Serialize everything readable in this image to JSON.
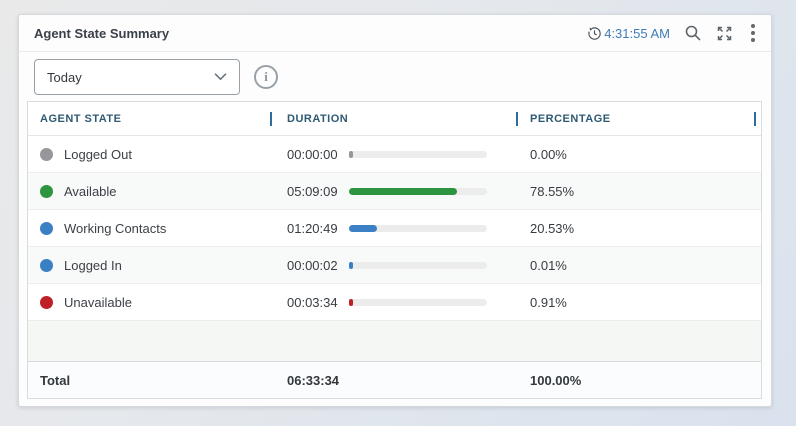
{
  "widget": {
    "title": "Agent State Summary",
    "last_refresh_time": "4:31:55 AM",
    "filter": {
      "value": "Today"
    },
    "icons": [
      "clock-history-icon",
      "zoom-icon",
      "expand-icon",
      "kebab-menu-icon",
      "chevron-down-icon",
      "info-icon"
    ]
  },
  "table": {
    "columns": [
      "AGENT STATE",
      "DURATION",
      "PERCENTAGE"
    ],
    "rows": [
      {
        "state": "Logged Out",
        "color": "#95979a",
        "duration": "00:00:00",
        "percentage": "0.00%",
        "percent_value": 0.0
      },
      {
        "state": "Available",
        "color": "#2d9440",
        "duration": "05:09:09",
        "percentage": "78.55%",
        "percent_value": 78.55
      },
      {
        "state": "Working Contacts",
        "color": "#3b7fc4",
        "duration": "01:20:49",
        "percentage": "20.53%",
        "percent_value": 20.53
      },
      {
        "state": "Logged In",
        "color": "#3b7fc4",
        "duration": "00:00:02",
        "percentage": "0.01%",
        "percent_value": 0.01
      },
      {
        "state": "Unavailable",
        "color": "#bf2026",
        "duration": "00:03:34",
        "percentage": "0.91%",
        "percent_value": 0.91
      }
    ],
    "total": {
      "label": "Total",
      "duration": "06:33:34",
      "percentage": "100.00%"
    }
  },
  "colors": {
    "accent_time_blue": "#3f7cb5",
    "column_header_text": "#2e5a73",
    "column_separator_tick": "#2f6d9e"
  }
}
